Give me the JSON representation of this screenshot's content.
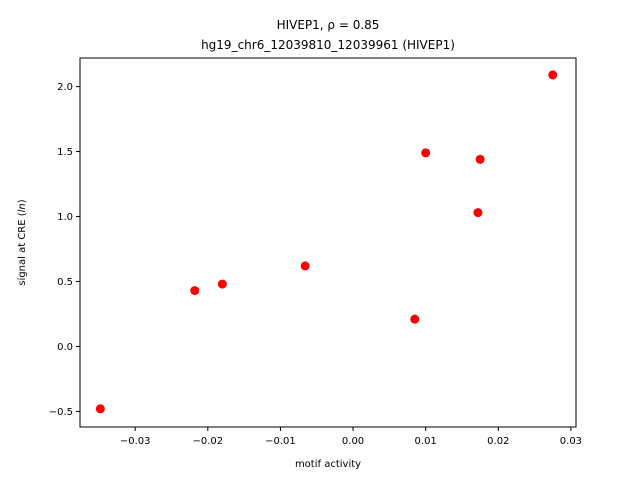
{
  "chart_data": {
    "type": "scatter",
    "title": "HIVEP1, ρ = 0.85",
    "subtitle": "hg19_chr6_12039810_12039961 (HIVEP1)",
    "xlabel": "motif activity",
    "ylabel_prefix": "signal at CRE (",
    "ylabel_italic": "ln",
    "ylabel_suffix": ")",
    "xlim": [
      -0.0376,
      0.0307
    ],
    "ylim": [
      -0.62,
      2.22
    ],
    "x_ticks": [
      -0.03,
      -0.02,
      -0.01,
      0.0,
      0.01,
      0.02,
      0.03
    ],
    "x_tick_labels": [
      "−0.03",
      "−0.02",
      "−0.01",
      "0.00",
      "0.01",
      "0.02",
      "0.03"
    ],
    "y_ticks": [
      -0.5,
      0.0,
      0.5,
      1.0,
      1.5,
      2.0
    ],
    "y_tick_labels": [
      "−0.5",
      "0.0",
      "0.5",
      "1.0",
      "1.5",
      "2.0"
    ],
    "grid": false,
    "marker_color": "#ff0000",
    "points": [
      {
        "x": -0.0348,
        "y": -0.48
      },
      {
        "x": -0.0218,
        "y": 0.43
      },
      {
        "x": -0.018,
        "y": 0.48
      },
      {
        "x": -0.0066,
        "y": 0.62
      },
      {
        "x": 0.0085,
        "y": 0.21
      },
      {
        "x": 0.01,
        "y": 1.49
      },
      {
        "x": 0.0172,
        "y": 1.03
      },
      {
        "x": 0.0175,
        "y": 1.44
      },
      {
        "x": 0.0275,
        "y": 2.09
      }
    ]
  }
}
